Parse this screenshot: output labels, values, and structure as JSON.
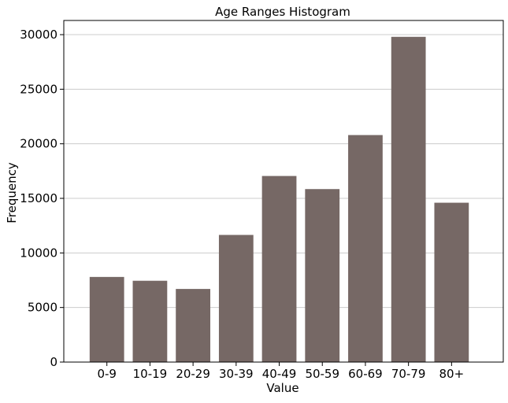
{
  "chart_data": {
    "type": "bar",
    "title": "Age Ranges Histogram",
    "xlabel": "Value",
    "ylabel": "Frequency",
    "categories": [
      "0-9",
      "10-19",
      "20-29",
      "30-39",
      "40-49",
      "50-59",
      "60-69",
      "70-79",
      "80+"
    ],
    "values": [
      7800,
      7450,
      6700,
      11650,
      17050,
      15850,
      20800,
      29800,
      14600
    ],
    "ylim": [
      0,
      31300
    ],
    "yticks": [
      0,
      5000,
      10000,
      15000,
      20000,
      25000,
      30000
    ],
    "grid": "y",
    "bar_color": "#766865",
    "grid_color": "#cccccc"
  }
}
